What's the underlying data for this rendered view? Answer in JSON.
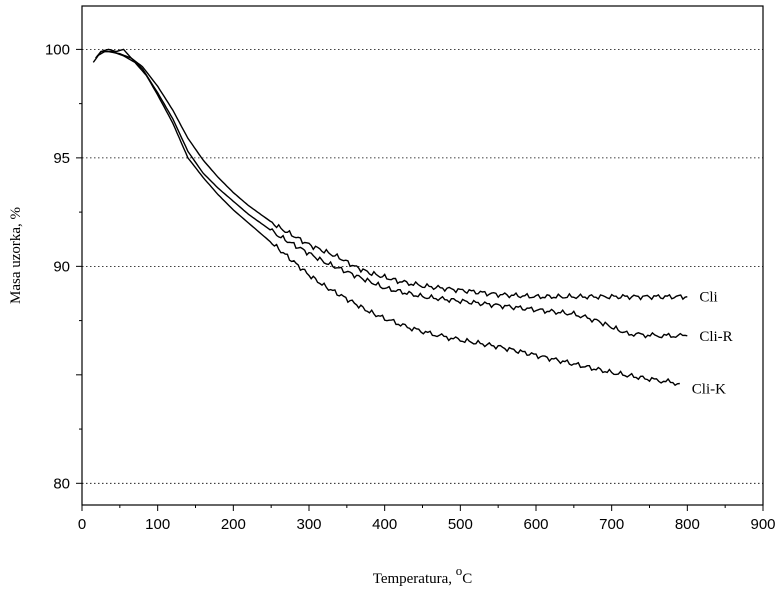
{
  "chart_data": {
    "type": "line",
    "title": "",
    "xlabel": "Temperatura, ",
    "xlabel_unit": "C",
    "xlabel_unit_prefix": "o",
    "ylabel": "Masa uzorka, %",
    "xlim": [
      0,
      900
    ],
    "ylim": [
      79,
      102
    ],
    "x_ticks": [
      0,
      100,
      200,
      300,
      400,
      500,
      600,
      700,
      800,
      900
    ],
    "y_ticks": [
      80,
      85,
      90,
      95,
      100
    ],
    "y_tick_labels": [
      "80",
      "",
      "90",
      "95",
      "100"
    ],
    "grid": "horizontal-dotted",
    "series": [
      {
        "name": "Cli",
        "x": [
          18,
          25,
          35,
          45,
          55,
          65,
          80,
          100,
          120,
          140,
          160,
          180,
          200,
          220,
          240,
          260,
          280,
          300,
          320,
          340,
          360,
          380,
          400,
          420,
          450,
          500,
          550,
          600,
          650,
          700,
          750,
          800
        ],
        "y": [
          99.6,
          99.9,
          100.0,
          99.9,
          100.0,
          99.6,
          99.2,
          98.3,
          97.2,
          95.9,
          94.9,
          94.1,
          93.4,
          92.8,
          92.3,
          91.8,
          91.4,
          91.0,
          90.7,
          90.4,
          90.0,
          89.7,
          89.5,
          89.3,
          89.1,
          88.9,
          88.7,
          88.6,
          88.6,
          88.6,
          88.6,
          88.6
        ]
      },
      {
        "name": "Cli-R",
        "x": [
          15,
          25,
          35,
          50,
          65,
          80,
          100,
          120,
          140,
          160,
          180,
          200,
          220,
          240,
          260,
          280,
          300,
          320,
          340,
          360,
          380,
          400,
          450,
          500,
          550,
          600,
          650,
          680,
          700,
          720,
          760,
          800
        ],
        "y": [
          99.4,
          99.9,
          99.9,
          99.8,
          99.6,
          99.1,
          98.0,
          96.8,
          95.3,
          94.3,
          93.6,
          93.0,
          92.4,
          91.9,
          91.4,
          91.0,
          90.6,
          90.2,
          89.9,
          89.6,
          89.3,
          89.0,
          88.6,
          88.4,
          88.2,
          88.0,
          87.8,
          87.5,
          87.2,
          86.9,
          86.8,
          86.8
        ]
      },
      {
        "name": "Cli-K",
        "x": [
          20,
          30,
          40,
          55,
          70,
          85,
          100,
          120,
          140,
          160,
          180,
          200,
          220,
          240,
          260,
          280,
          300,
          320,
          340,
          360,
          380,
          400,
          430,
          460,
          500,
          550,
          600,
          650,
          700,
          750,
          790
        ],
        "y": [
          99.7,
          99.9,
          99.9,
          99.7,
          99.4,
          98.8,
          97.9,
          96.6,
          95.0,
          94.1,
          93.3,
          92.6,
          92.0,
          91.4,
          90.8,
          90.2,
          89.6,
          89.1,
          88.7,
          88.3,
          87.9,
          87.6,
          87.2,
          86.9,
          86.6,
          86.3,
          85.9,
          85.5,
          85.1,
          84.8,
          84.6
        ]
      }
    ]
  }
}
